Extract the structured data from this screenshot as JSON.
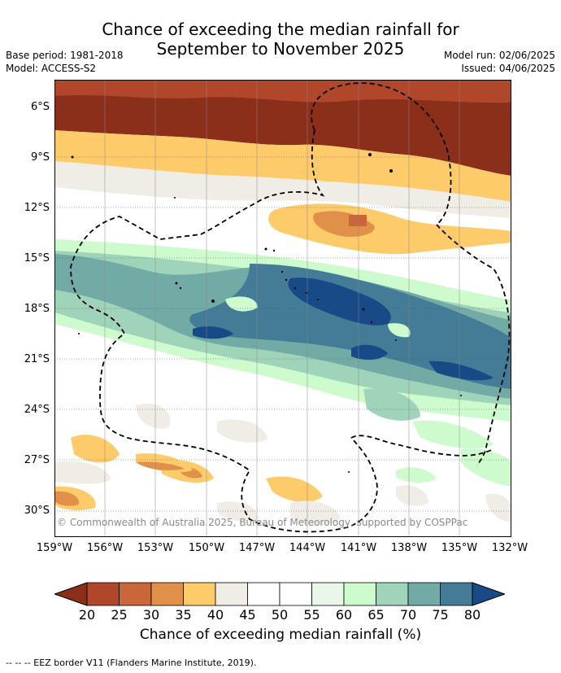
{
  "title_line1": "Chance of exceeding the median rainfall for",
  "title_line2": "September to November 2025",
  "meta": {
    "base_period": "Base period: 1981-2018",
    "model": "Model: ACCESS-S2",
    "model_run": "Model run: 02/06/2025",
    "issued": "Issued: 04/06/2025"
  },
  "map": {
    "lat_labels": [
      "6°S",
      "9°S",
      "12°S",
      "15°S",
      "18°S",
      "21°S",
      "24°S",
      "27°S",
      "30°S"
    ],
    "lon_labels": [
      "159°W",
      "156°W",
      "153°W",
      "150°W",
      "147°W",
      "144°W",
      "141°W",
      "138°W",
      "135°W",
      "132°W"
    ],
    "copyright": "© Commonwealth of Australia 2025, Bureau of Meteorology, supported by COSPPac"
  },
  "colorbar": {
    "ticks": [
      "20",
      "25",
      "30",
      "35",
      "40",
      "45",
      "50",
      "55",
      "60",
      "65",
      "70",
      "75",
      "80"
    ],
    "colors": [
      "#8b2f1a",
      "#b0462a",
      "#c9663a",
      "#e09048",
      "#fecb6a",
      "#f0ece6",
      "#ffffff",
      "#ffffff",
      "#e9f6e9",
      "#cdfbcd",
      "#9fd4bb",
      "#72aaa6",
      "#447b97",
      "#174a86"
    ],
    "label": "Chance of exceeding median rainfall (%)"
  },
  "footnote": "--  --  -- EEZ border V11 (Flanders Marine Institute, 2019)."
}
